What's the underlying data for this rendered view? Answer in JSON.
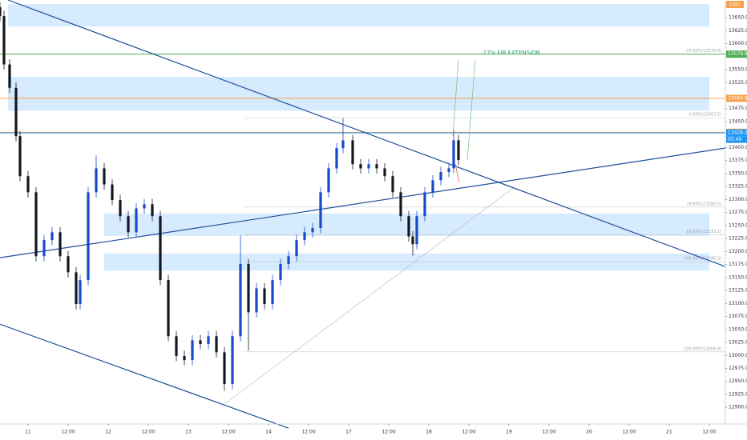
{
  "chart_data": {
    "type": "candlestick",
    "currency": "USD",
    "annotation": "-27% FIB EXTENSION",
    "countdown": "05:49",
    "xlim": [
      -0.7,
      17.4
    ],
    "ylim": [
      12868,
      13684
    ],
    "xticks": [
      {
        "value": 0,
        "label": "11"
      },
      {
        "value": 1,
        "label": "12:00"
      },
      {
        "value": 2,
        "label": "12"
      },
      {
        "value": 3,
        "label": "12:00"
      },
      {
        "value": 4,
        "label": "13"
      },
      {
        "value": 5,
        "label": "12:00"
      },
      {
        "value": 6,
        "label": "14"
      },
      {
        "value": 7,
        "label": "12:00"
      },
      {
        "value": 8,
        "label": "17"
      },
      {
        "value": 9,
        "label": "12:00"
      },
      {
        "value": 10,
        "label": "18"
      },
      {
        "value": 11,
        "label": "12:00"
      },
      {
        "value": 12,
        "label": "19"
      },
      {
        "value": 13,
        "label": "12:00"
      },
      {
        "value": 14,
        "label": "20"
      },
      {
        "value": 15,
        "label": "12:00"
      },
      {
        "value": 16,
        "label": "21"
      },
      {
        "value": 17,
        "label": "12:00"
      }
    ],
    "yticks": [
      {
        "value": 12900,
        "label": "12900.0"
      },
      {
        "value": 12925,
        "label": "12925.0"
      },
      {
        "value": 12950,
        "label": "12950.0"
      },
      {
        "value": 12975,
        "label": "12975.0"
      },
      {
        "value": 13000,
        "label": "13000.0"
      },
      {
        "value": 13025,
        "label": "13025.0"
      },
      {
        "value": 13050,
        "label": "13050.0"
      },
      {
        "value": 13075,
        "label": "13075.0"
      },
      {
        "value": 13100,
        "label": "13100.0"
      },
      {
        "value": 13125,
        "label": "13125.0"
      },
      {
        "value": 13150,
        "label": "13150.0"
      },
      {
        "value": 13175,
        "label": "13175.0"
      },
      {
        "value": 13200,
        "label": "13200.0"
      },
      {
        "value": 13225,
        "label": "13225.0"
      },
      {
        "value": 13250,
        "label": "13250.0"
      },
      {
        "value": 13275,
        "label": "13275.0"
      },
      {
        "value": 13300,
        "label": "13300.0"
      },
      {
        "value": 13325,
        "label": "13325.0"
      },
      {
        "value": 13350,
        "label": "13350.0"
      },
      {
        "value": 13375,
        "label": "13375.0"
      },
      {
        "value": 13400,
        "label": "13400.0"
      },
      {
        "value": 13450,
        "label": "13450.0"
      },
      {
        "value": 13475,
        "label": "13475.0"
      },
      {
        "value": 13525,
        "label": "13525.0"
      },
      {
        "value": 13550,
        "label": "13550.0"
      },
      {
        "value": 13600,
        "label": "13600.0"
      },
      {
        "value": 13625,
        "label": "13625.0"
      },
      {
        "value": 13650,
        "label": "13650.0"
      }
    ],
    "up_color": "#1848cc",
    "down_color": "#131722",
    "x": [
      -0.7,
      -0.6,
      -0.46,
      -0.3,
      -0.2,
      0,
      0.2,
      0.4,
      0.6,
      0.8,
      1.0,
      1.2,
      1.3,
      1.5,
      1.7,
      1.9,
      2.1,
      2.3,
      2.5,
      2.7,
      2.9,
      3.1,
      3.3,
      3.5,
      3.7,
      3.9,
      4.1,
      4.3,
      4.5,
      4.7,
      4.9,
      5.1,
      5.3,
      5.5,
      5.7,
      5.9,
      6.1,
      6.3,
      6.5,
      6.7,
      6.9,
      7.1,
      7.3,
      7.5,
      7.7,
      7.86,
      8.1,
      8.3,
      8.5,
      8.7,
      8.9,
      9.1,
      9.3,
      9.5,
      9.6,
      9.7,
      9.9,
      10.1,
      10.3,
      10.5,
      10.62,
      10.74
    ],
    "ohlc": [
      [
        13670,
        13680,
        13643,
        13653
      ],
      [
        13653,
        13663,
        13550,
        13560
      ],
      [
        13560,
        13570,
        13505,
        13515
      ],
      [
        13515,
        13525,
        13412,
        13422
      ],
      [
        13422,
        13432,
        13335,
        13345
      ],
      [
        13345,
        13355,
        13304,
        13314
      ],
      [
        13314,
        13324,
        13181,
        13191
      ],
      [
        13191,
        13232,
        13181,
        13222
      ],
      [
        13222,
        13247,
        13212,
        13237
      ],
      [
        13237,
        13247,
        13181,
        13191
      ],
      [
        13191,
        13201,
        13150,
        13160
      ],
      [
        13160,
        13170,
        13089,
        13099
      ],
      [
        13099,
        13155,
        13089,
        13145
      ],
      [
        13145,
        13324,
        13135,
        13314
      ],
      [
        13314,
        13385,
        13304,
        13360
      ],
      [
        13360,
        13370,
        13319,
        13329
      ],
      [
        13329,
        13339,
        13289,
        13299
      ],
      [
        13299,
        13309,
        13258,
        13268
      ],
      [
        13268,
        13278,
        13227,
        13237
      ],
      [
        13237,
        13293,
        13227,
        13283
      ],
      [
        13283,
        13301,
        13273,
        13291
      ],
      [
        13291,
        13301,
        13258,
        13268
      ],
      [
        13268,
        13278,
        13135,
        13145
      ],
      [
        13145,
        13155,
        13027,
        13037
      ],
      [
        13037,
        13047,
        12989,
        12999
      ],
      [
        12999,
        13009,
        12981,
        12991
      ],
      [
        12991,
        13039,
        12981,
        13029
      ],
      [
        13029,
        13039,
        13012,
        13022
      ],
      [
        13022,
        13047,
        13012,
        13037
      ],
      [
        13037,
        13047,
        12996,
        13006
      ],
      [
        13006,
        13016,
        12932,
        12945
      ],
      [
        12945,
        13047,
        12935,
        13037
      ],
      [
        13037,
        13231,
        13027,
        13176
      ],
      [
        13176,
        13186,
        13009,
        13083
      ],
      [
        13083,
        13139,
        13073,
        13129
      ],
      [
        13129,
        13139,
        13089,
        13099
      ],
      [
        13099,
        13155,
        13089,
        13145
      ],
      [
        13145,
        13186,
        13135,
        13176
      ],
      [
        13176,
        13201,
        13166,
        13191
      ],
      [
        13191,
        13232,
        13181,
        13222
      ],
      [
        13222,
        13247,
        13212,
        13237
      ],
      [
        13237,
        13255,
        13227,
        13245
      ],
      [
        13245,
        13324,
        13235,
        13314
      ],
      [
        13314,
        13370,
        13304,
        13360
      ],
      [
        13360,
        13409,
        13350,
        13399
      ],
      [
        13399,
        13457,
        13389,
        13414
      ],
      [
        13414,
        13424,
        13358,
        13368
      ],
      [
        13368,
        13378,
        13350,
        13360
      ],
      [
        13360,
        13378,
        13350,
        13368
      ],
      [
        13368,
        13378,
        13350,
        13360
      ],
      [
        13360,
        13370,
        13335,
        13345
      ],
      [
        13345,
        13355,
        13304,
        13314
      ],
      [
        13314,
        13324,
        13258,
        13268
      ],
      [
        13268,
        13278,
        13219,
        13229
      ],
      [
        13229,
        13239,
        13192,
        13214
      ],
      [
        13214,
        13278,
        13204,
        13268
      ],
      [
        13268,
        13324,
        13258,
        13314
      ],
      [
        13314,
        13347,
        13304,
        13337
      ],
      [
        13337,
        13363,
        13327,
        13353
      ],
      [
        13353,
        13370,
        13343,
        13360
      ],
      [
        13360,
        13434,
        13350,
        13414
      ],
      [
        13414,
        13424,
        13366,
        13376
      ]
    ],
    "zones": [
      [
        -0.5,
        17.0,
        13676,
        13633
      ],
      [
        -0.5,
        17.0,
        13536,
        13471
      ],
      [
        1.9,
        17.0,
        13273,
        13230
      ],
      [
        1.9,
        17.0,
        13196,
        13163
      ]
    ],
    "trendlines": [
      {
        "color": "#1e4f9c",
        "points": [
          [
            -0.5,
            13684
          ],
          [
            17.4,
            13171
          ]
        ]
      },
      {
        "color": "#1e4f9c",
        "points": [
          [
            -0.7,
            13188
          ],
          [
            17.4,
            13399
          ]
        ]
      },
      {
        "color": "#1e4f9c",
        "points": [
          [
            -0.7,
            13060
          ],
          [
            6.5,
            12860
          ]
        ]
      },
      {
        "color": "#b0b4bc",
        "points": [
          [
            4.9,
            12906
          ],
          [
            12.1,
            13322
          ]
        ]
      }
    ],
    "levels": [
      {
        "value": 13579.8,
        "color": "#4caf50"
      },
      {
        "value": 13494.8,
        "color": "#f7a14b"
      },
      {
        "value": 13429.4,
        "color": "#f7a14b"
      },
      {
        "value": 13428.2,
        "color": "#2196f3"
      }
    ],
    "fib": [
      {
        "value": 13579.8,
        "label": "-27.00%(13579.8)"
      },
      {
        "value": 13457.5,
        "label": "0.00%(13457.5)"
      },
      {
        "value": 13285.5,
        "label": "78.60%(13285.5)"
      },
      {
        "value": 13232.1,
        "label": "88.60%(13232.1)"
      },
      {
        "value": 13180.3,
        "label": "100.00%(13180.3)"
      },
      {
        "value": 13006.8,
        "label": "100.00%(13006.8)"
      }
    ]
  }
}
